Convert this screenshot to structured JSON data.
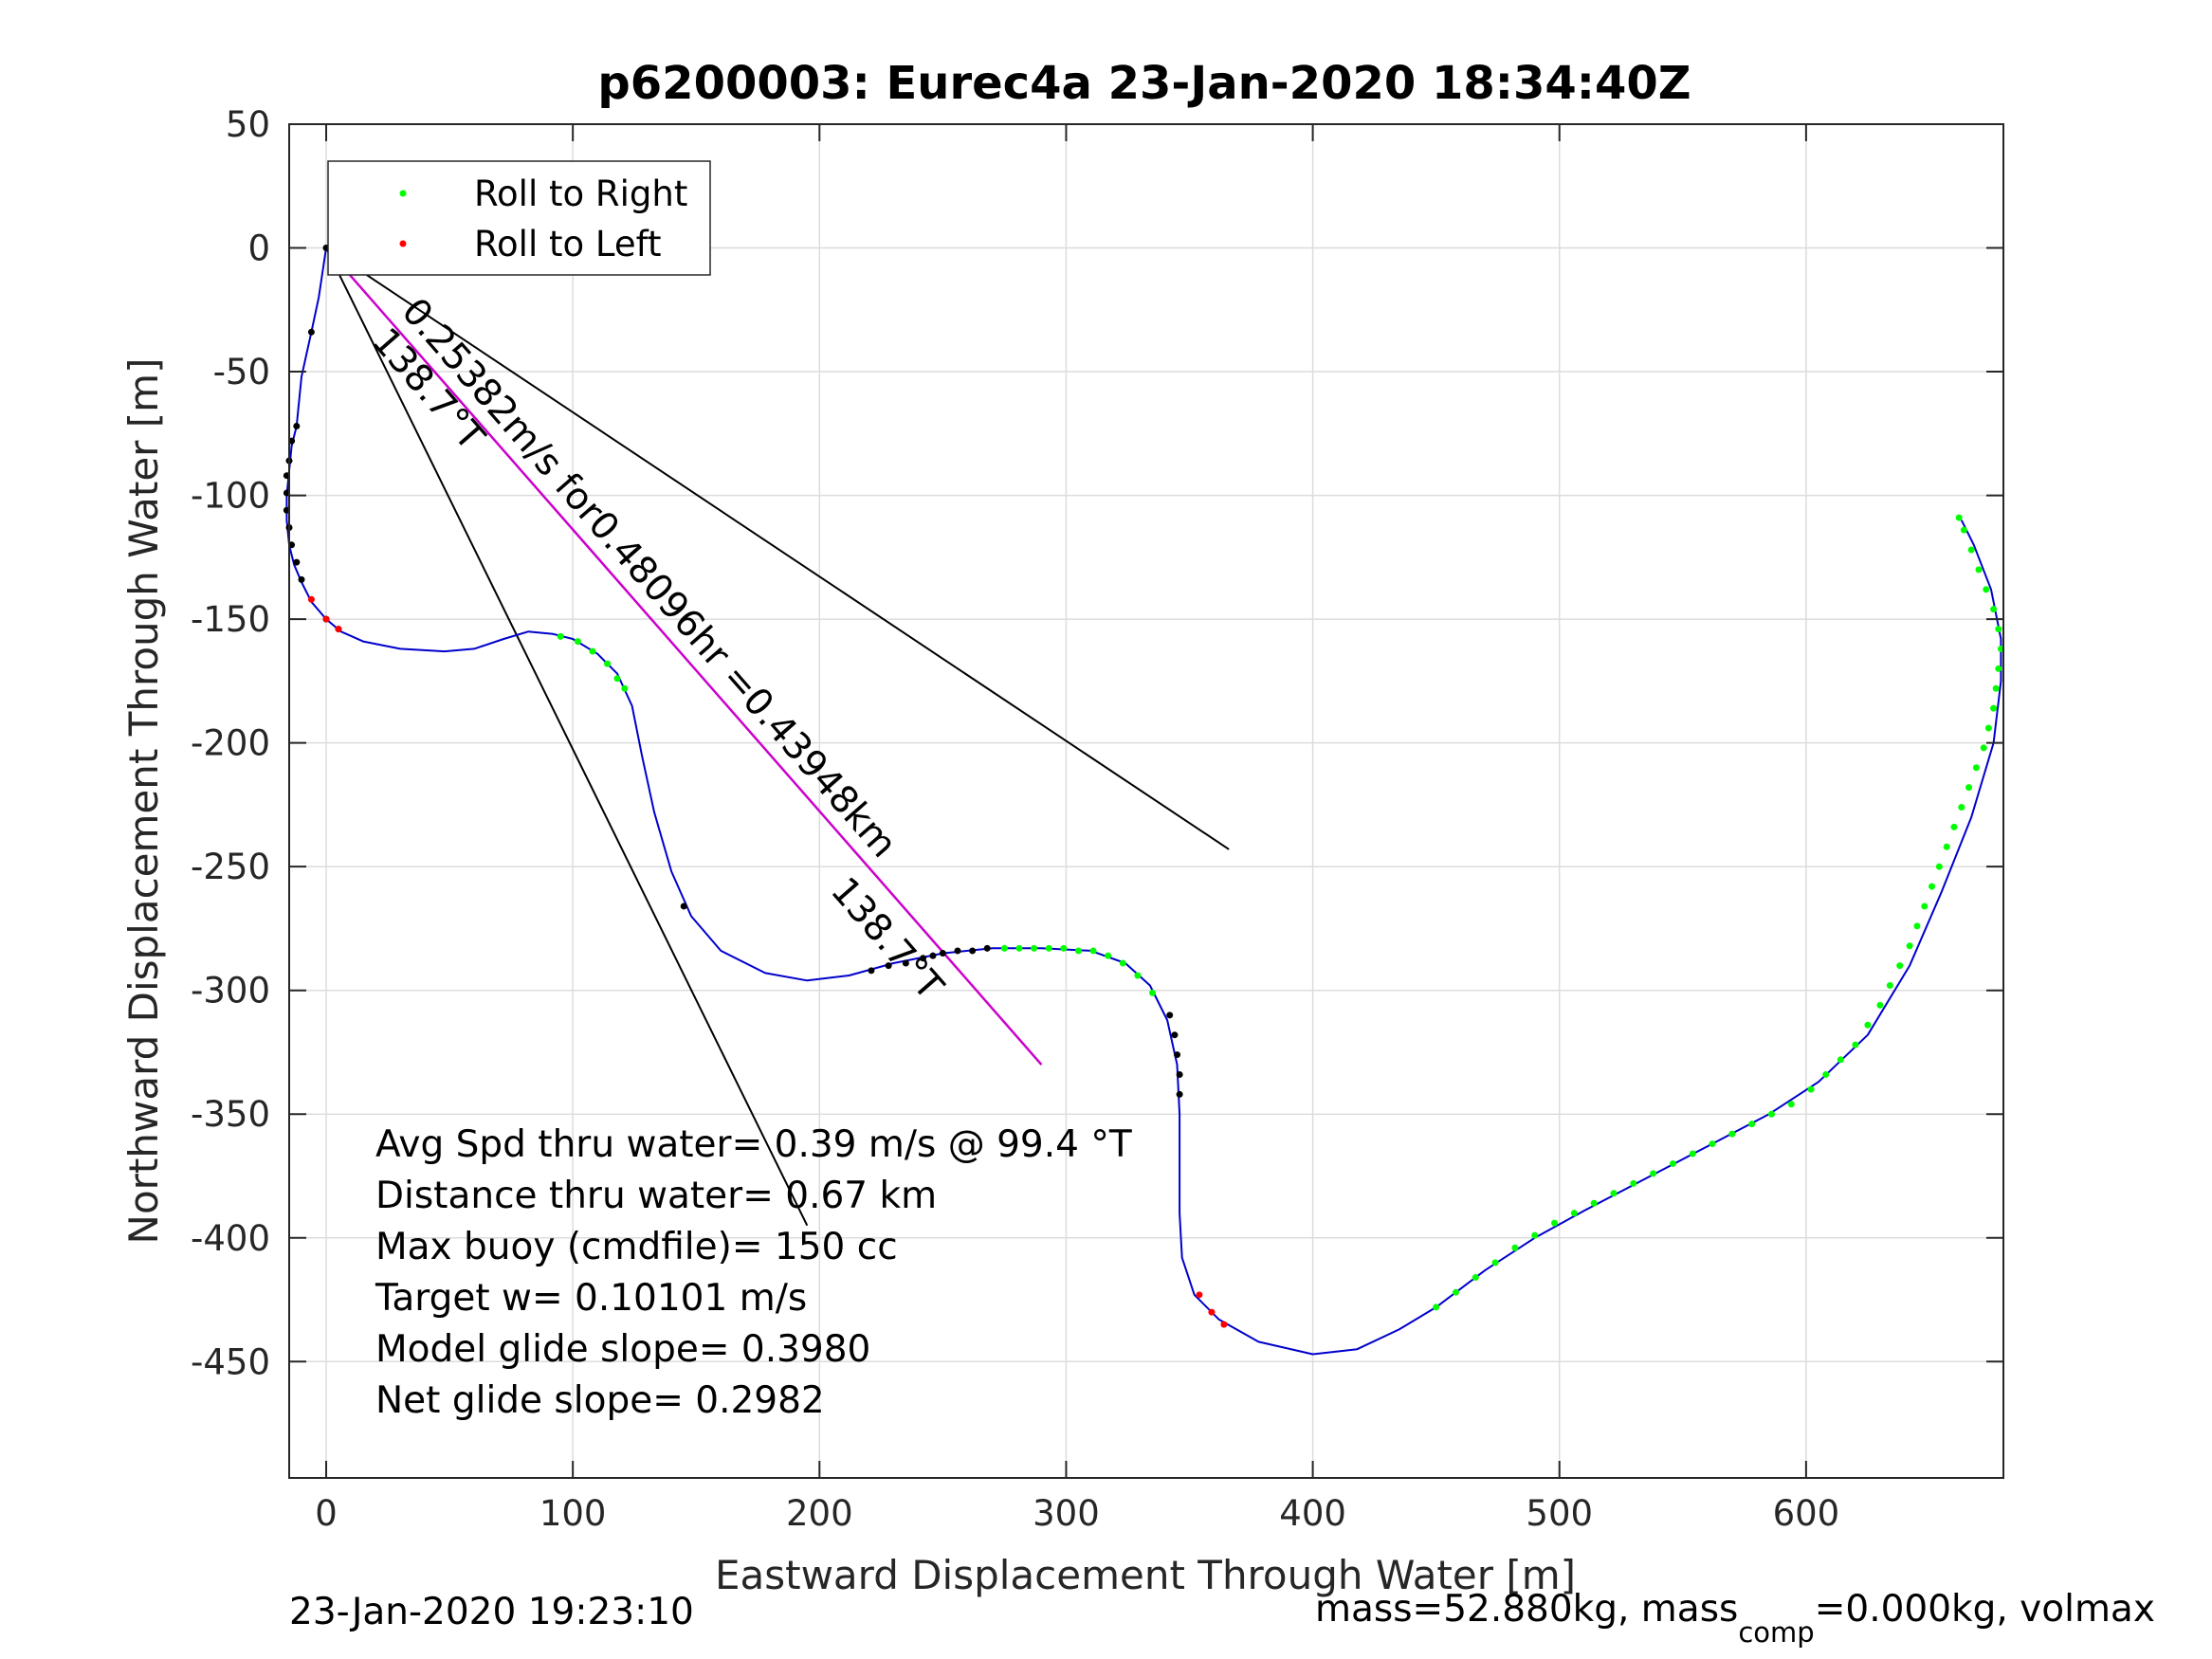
{
  "chart_data": {
    "type": "line",
    "title": "p6200003: Eurec4a 23-Jan-2020 18:34:40Z",
    "xlabel": "Eastward Displacement Through Water [m]",
    "ylabel": "Northward Displacement Through Water [m]",
    "xlim": [
      -15,
      680
    ],
    "ylim": [
      -497,
      50
    ],
    "xticks": [
      0,
      100,
      200,
      300,
      400,
      500,
      600
    ],
    "yticks": [
      50,
      0,
      -50,
      -100,
      -150,
      -200,
      -250,
      -300,
      -350,
      -400,
      -450
    ],
    "grid": true,
    "legend": {
      "placement": "top-left",
      "entries": [
        {
          "label": "Roll to Right",
          "color": "#00ff00"
        },
        {
          "label": "Roll to Left",
          "color": "#ff0000"
        }
      ]
    },
    "colors": {
      "track": "#0000cc",
      "mean": "#cc00cc",
      "wedge": "#000000",
      "dot": "#000000"
    },
    "track": [
      [
        0,
        0
      ],
      [
        -3,
        -20
      ],
      [
        -6,
        -34
      ],
      [
        -10,
        -52
      ],
      [
        -12,
        -72
      ],
      [
        -14,
        -80
      ],
      [
        -15,
        -90
      ],
      [
        -16,
        -100
      ],
      [
        -16,
        -110
      ],
      [
        -15,
        -120
      ],
      [
        -13,
        -128
      ],
      [
        -10,
        -135
      ],
      [
        -6,
        -143
      ],
      [
        0,
        -150
      ],
      [
        6,
        -155
      ],
      [
        15,
        -159
      ],
      [
        30,
        -162
      ],
      [
        48,
        -163
      ],
      [
        60,
        -162
      ],
      [
        72,
        -158
      ],
      [
        82,
        -155
      ],
      [
        92,
        -156
      ],
      [
        100,
        -158
      ],
      [
        110,
        -164
      ],
      [
        118,
        -172
      ],
      [
        124,
        -185
      ],
      [
        128,
        -205
      ],
      [
        133,
        -228
      ],
      [
        140,
        -252
      ],
      [
        148,
        -270
      ],
      [
        160,
        -284
      ],
      [
        178,
        -293
      ],
      [
        195,
        -296
      ],
      [
        212,
        -294
      ],
      [
        230,
        -289
      ],
      [
        250,
        -285
      ],
      [
        270,
        -283
      ],
      [
        290,
        -283
      ],
      [
        310,
        -284
      ],
      [
        324,
        -289
      ],
      [
        334,
        -298
      ],
      [
        341,
        -312
      ],
      [
        345,
        -330
      ],
      [
        346,
        -350
      ],
      [
        346,
        -370
      ],
      [
        346,
        -390
      ],
      [
        347,
        -408
      ],
      [
        352,
        -423
      ],
      [
        362,
        -433
      ],
      [
        378,
        -442
      ],
      [
        400,
        -447
      ],
      [
        418,
        -445
      ],
      [
        435,
        -437
      ],
      [
        450,
        -428
      ],
      [
        470,
        -413
      ],
      [
        490,
        -400
      ],
      [
        510,
        -389
      ],
      [
        535,
        -376
      ],
      [
        560,
        -363
      ],
      [
        585,
        -350
      ],
      [
        605,
        -337
      ],
      [
        625,
        -318
      ],
      [
        642,
        -290
      ],
      [
        655,
        -260
      ],
      [
        667,
        -230
      ],
      [
        676,
        -200
      ],
      [
        679,
        -175
      ],
      [
        679,
        -158
      ],
      [
        675,
        -138
      ],
      [
        668,
        -120
      ],
      [
        663,
        -110
      ]
    ],
    "black_dots": [
      [
        0,
        0
      ],
      [
        -6,
        -34
      ],
      [
        -12,
        -72
      ],
      [
        -14,
        -78
      ],
      [
        -15,
        -86
      ],
      [
        -16,
        -92
      ],
      [
        -16,
        -99
      ],
      [
        -16,
        -106
      ],
      [
        -15,
        -113
      ],
      [
        -14,
        -120
      ],
      [
        -12,
        -127
      ],
      [
        -10,
        -134
      ],
      [
        0,
        -150
      ],
      [
        5,
        -154
      ],
      [
        145,
        -266
      ],
      [
        221,
        -292
      ],
      [
        228,
        -290
      ],
      [
        235,
        -289
      ],
      [
        242,
        -287
      ],
      [
        246,
        -286
      ],
      [
        250,
        -285
      ],
      [
        256,
        -284
      ],
      [
        262,
        -284
      ],
      [
        268,
        -283
      ],
      [
        342,
        -310
      ],
      [
        344,
        -318
      ],
      [
        345,
        -326
      ],
      [
        346,
        -334
      ],
      [
        346,
        -342
      ]
    ],
    "green_dots": [
      [
        95,
        -157
      ],
      [
        102,
        -159
      ],
      [
        108,
        -163
      ],
      [
        114,
        -168
      ],
      [
        118,
        -174
      ],
      [
        121,
        -178
      ],
      [
        275,
        -283
      ],
      [
        281,
        -283
      ],
      [
        287,
        -283
      ],
      [
        293,
        -283
      ],
      [
        299,
        -283
      ],
      [
        305,
        -284
      ],
      [
        311,
        -284
      ],
      [
        317,
        -286
      ],
      [
        323,
        -289
      ],
      [
        329,
        -294
      ],
      [
        335,
        -301
      ],
      [
        450,
        -428
      ],
      [
        458,
        -422
      ],
      [
        466,
        -416
      ],
      [
        474,
        -410
      ],
      [
        482,
        -404
      ],
      [
        490,
        -399
      ],
      [
        498,
        -394
      ],
      [
        506,
        -390
      ],
      [
        514,
        -386
      ],
      [
        522,
        -382
      ],
      [
        530,
        -378
      ],
      [
        538,
        -374
      ],
      [
        546,
        -370
      ],
      [
        554,
        -366
      ],
      [
        562,
        -362
      ],
      [
        570,
        -358
      ],
      [
        578,
        -354
      ],
      [
        586,
        -350
      ],
      [
        594,
        -346
      ],
      [
        602,
        -340
      ],
      [
        608,
        -334
      ],
      [
        614,
        -328
      ],
      [
        620,
        -322
      ],
      [
        625,
        -314
      ],
      [
        630,
        -306
      ],
      [
        634,
        -298
      ],
      [
        638,
        -290
      ],
      [
        642,
        -282
      ],
      [
        645,
        -274
      ],
      [
        648,
        -266
      ],
      [
        651,
        -258
      ],
      [
        654,
        -250
      ],
      [
        657,
        -242
      ],
      [
        660,
        -234
      ],
      [
        663,
        -226
      ],
      [
        666,
        -218
      ],
      [
        669,
        -210
      ],
      [
        672,
        -202
      ],
      [
        674,
        -194
      ],
      [
        676,
        -186
      ],
      [
        677,
        -178
      ],
      [
        678,
        -170
      ],
      [
        679,
        -162
      ],
      [
        678,
        -154
      ],
      [
        676,
        -146
      ],
      [
        673,
        -138
      ],
      [
        670,
        -130
      ],
      [
        667,
        -122
      ],
      [
        664,
        -114
      ],
      [
        662,
        -109
      ]
    ],
    "red_dots": [
      [
        -6,
        -142
      ],
      [
        0,
        -150
      ],
      [
        5,
        -154
      ],
      [
        354,
        -423
      ],
      [
        359,
        -430
      ],
      [
        364,
        -435
      ]
    ],
    "mean_line": [
      [
        0,
        0
      ],
      [
        290,
        -330
      ]
    ],
    "wedge_lines": [
      [
        [
          0,
          0
        ],
        [
          195,
          -395
        ]
      ],
      [
        [
          0,
          0
        ],
        [
          366,
          -243
        ]
      ]
    ],
    "annotations": {
      "speed_text": "0.25382m/s for0.48096hr =0.43948km",
      "heading_top": "138.7°T",
      "heading_mid": "138.7°T"
    },
    "stats": [
      "Avg Spd thru water=  0.39 m/s @  99.4 °T",
      "Distance thru water=  0.67 km",
      "Max buoy (cmdfile)= 150 cc",
      "Target w= 0.10101 m/s",
      "Model glide slope= 0.3980",
      "Net glide slope= 0.2982"
    ]
  },
  "footer": {
    "timestamp": "23-Jan-2020 19:23:10",
    "mass_prefix": "mass=52.880kg, mass",
    "mass_sub": "comp",
    "mass_suffix": "=0.000kg, volmax"
  }
}
